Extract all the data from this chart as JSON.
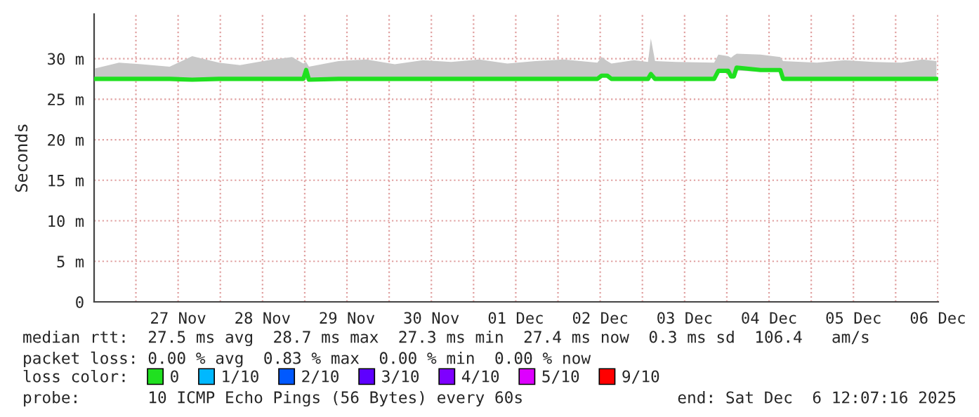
{
  "chart_data": {
    "type": "line",
    "ylabel": "Seconds",
    "x": [
      "2025-11-26T12:24",
      "2025-11-26T19:12",
      "2025-11-27T01:36",
      "2025-11-27T09:36",
      "2025-11-27T16:00",
      "2025-11-27T23:36",
      "2025-11-28T05:36",
      "2025-11-28T13:36",
      "2025-11-28T20:24",
      "2025-11-28T23:36",
      "2025-11-29T00:24",
      "2025-11-29T01:12",
      "2025-11-29T09:36",
      "2025-11-29T17:36",
      "2025-11-30T01:36",
      "2025-11-30T09:36",
      "2025-11-30T17:36",
      "2025-12-01T01:36",
      "2025-12-01T09:36",
      "2025-12-01T17:36",
      "2025-12-02T01:36",
      "2025-12-02T11:12",
      "2025-12-02T12:24",
      "2025-12-02T14:00",
      "2025-12-02T15:12",
      "2025-12-02T21:36",
      "2025-12-03T01:36",
      "2025-12-03T02:24",
      "2025-12-03T03:36",
      "2025-12-03T09:36",
      "2025-12-03T20:24",
      "2025-12-03T21:36",
      "2025-12-04T00:24",
      "2025-12-04T01:12",
      "2025-12-04T02:00",
      "2025-12-04T02:48",
      "2025-12-04T09:36",
      "2025-12-04T15:12",
      "2025-12-04T16:00",
      "2025-12-05T01:36",
      "2025-12-05T09:36",
      "2025-12-05T17:36",
      "2025-12-06T01:36",
      "2025-12-06T07:36",
      "2025-12-06T11:36"
    ],
    "series": [
      {
        "name": "0",
        "color": "#20e020",
        "values": [
          27.5,
          27.5,
          27.5,
          27.5,
          27.4,
          27.5,
          27.5,
          27.5,
          27.5,
          27.5,
          28.6,
          27.4,
          27.5,
          27.5,
          27.5,
          27.5,
          27.5,
          27.5,
          27.5,
          27.5,
          27.5,
          27.5,
          27.9,
          27.9,
          27.5,
          27.5,
          27.5,
          28.1,
          27.5,
          27.5,
          27.5,
          28.5,
          28.5,
          27.8,
          27.8,
          28.9,
          28.6,
          28.6,
          27.5,
          27.5,
          27.5,
          27.5,
          27.5,
          27.5,
          27.5
        ],
        "lower": [
          27.3,
          27.3,
          27.3,
          27.3,
          27.3,
          27.3,
          27.3,
          27.3,
          27.3,
          27.3,
          27.4,
          27.3,
          27.3,
          27.3,
          27.3,
          27.3,
          27.3,
          27.3,
          27.3,
          27.3,
          27.3,
          27.3,
          27.7,
          27.7,
          27.3,
          27.3,
          27.3,
          27.8,
          27.3,
          27.3,
          27.3,
          28.3,
          28.3,
          27.6,
          27.6,
          28.5,
          28.4,
          28.4,
          27.3,
          27.3,
          27.3,
          27.3,
          27.3,
          27.3,
          27.3
        ],
        "upper": [
          28.8,
          29.5,
          29.3,
          29,
          30.3,
          29.5,
          29.2,
          29.8,
          30.2,
          29.4,
          29.6,
          29,
          29.7,
          29.9,
          29.3,
          29.8,
          29.6,
          29.9,
          29.4,
          29.7,
          29.9,
          29.5,
          30.2,
          29.7,
          29.4,
          29.8,
          29.6,
          32.5,
          29.7,
          29.6,
          29.5,
          30.5,
          30.3,
          30.1,
          30.4,
          30.6,
          30.5,
          30.2,
          29.7,
          29.5,
          29.8,
          29.6,
          29.5,
          29.9,
          29.7
        ]
      },
      {
        "name": "1/10",
        "color": "#00b8ff",
        "values": [
          null,
          null,
          null,
          null,
          null,
          null,
          null,
          null,
          null,
          null,
          null,
          null,
          null,
          null,
          null,
          null,
          null,
          null,
          null,
          null,
          null,
          null,
          null,
          null,
          null,
          null,
          null,
          null,
          null,
          null,
          null,
          null,
          null,
          null,
          null,
          null,
          null,
          null,
          null,
          null,
          null,
          null,
          null,
          null,
          null
        ]
      },
      {
        "name": "2/10",
        "color": "#0059ff",
        "values": [
          null,
          null,
          null,
          null,
          null,
          null,
          null,
          null,
          null,
          null,
          null,
          null,
          null,
          null,
          null,
          null,
          null,
          null,
          null,
          null,
          null,
          null,
          null,
          null,
          null,
          null,
          null,
          null,
          null,
          null,
          null,
          null,
          null,
          null,
          null,
          null,
          null,
          null,
          null,
          null,
          null,
          null,
          null,
          null,
          null
        ]
      },
      {
        "name": "3/10",
        "color": "#5e00ff",
        "values": [
          null,
          null,
          null,
          null,
          null,
          null,
          null,
          null,
          null,
          null,
          null,
          null,
          null,
          null,
          null,
          null,
          null,
          null,
          null,
          null,
          null,
          null,
          null,
          null,
          null,
          null,
          null,
          null,
          null,
          null,
          null,
          null,
          null,
          null,
          null,
          null,
          null,
          null,
          null,
          null,
          null,
          null,
          null,
          null,
          null
        ]
      },
      {
        "name": "4/10",
        "color": "#7e00ff",
        "values": [
          null,
          null,
          null,
          null,
          null,
          null,
          null,
          null,
          null,
          null,
          null,
          null,
          null,
          null,
          null,
          null,
          null,
          null,
          null,
          null,
          null,
          null,
          null,
          null,
          null,
          null,
          null,
          null,
          null,
          null,
          null,
          null,
          null,
          null,
          null,
          null,
          null,
          null,
          null,
          null,
          null,
          null,
          null,
          null,
          null
        ]
      },
      {
        "name": "5/10",
        "color": "#dd00ff",
        "values": [
          null,
          null,
          null,
          null,
          null,
          null,
          null,
          null,
          null,
          null,
          null,
          null,
          null,
          null,
          null,
          null,
          null,
          null,
          null,
          null,
          null,
          null,
          null,
          null,
          null,
          null,
          null,
          null,
          null,
          null,
          null,
          null,
          null,
          null,
          null,
          null,
          null,
          null,
          null,
          null,
          null,
          null,
          null,
          null,
          null
        ]
      },
      {
        "name": "9/10",
        "color": "#ff0000",
        "values": [
          null,
          null,
          null,
          null,
          null,
          null,
          null,
          null,
          null,
          null,
          null,
          null,
          null,
          null,
          null,
          null,
          null,
          null,
          null,
          null,
          null,
          null,
          null,
          null,
          null,
          null,
          null,
          null,
          null,
          null,
          null,
          null,
          null,
          null,
          null,
          null,
          null,
          null,
          null,
          null,
          null,
          null,
          null,
          null,
          null
        ]
      }
    ],
    "xlim": [
      "2025-11-26T12:07",
      "2025-12-06T12:07"
    ],
    "xticks": [
      {
        "value": "2025-11-27",
        "label": null
      },
      {
        "value": "2025-11-27T12:00",
        "label": "27 Nov"
      },
      {
        "value": "2025-11-28",
        "label": null
      },
      {
        "value": "2025-11-28T12:00",
        "label": "28 Nov"
      },
      {
        "value": "2025-11-29",
        "label": null
      },
      {
        "value": "2025-11-29T12:00",
        "label": "29 Nov"
      },
      {
        "value": "2025-11-30",
        "label": null
      },
      {
        "value": "2025-11-30T12:00",
        "label": "30 Nov"
      },
      {
        "value": "2025-12-01",
        "label": null
      },
      {
        "value": "2025-12-01T12:00",
        "label": "01 Dec"
      },
      {
        "value": "2025-12-02",
        "label": null
      },
      {
        "value": "2025-12-02T12:00",
        "label": "02 Dec"
      },
      {
        "value": "2025-12-03",
        "label": null
      },
      {
        "value": "2025-12-03T12:00",
        "label": "03 Dec"
      },
      {
        "value": "2025-12-04",
        "label": null
      },
      {
        "value": "2025-12-04T12:00",
        "label": "04 Dec"
      },
      {
        "value": "2025-12-05",
        "label": null
      },
      {
        "value": "2025-12-05T12:00",
        "label": "05 Dec"
      },
      {
        "value": "2025-12-06",
        "label": null
      },
      {
        "value": "2025-12-06T12:00",
        "label": "06 Dec"
      }
    ],
    "ylim": [
      0,
      35.5
    ],
    "yticks": [
      0,
      {
        "value": 5,
        "label": "5 m"
      },
      {
        "value": 10,
        "label": "10 m"
      },
      {
        "value": 15,
        "label": "15 m"
      },
      {
        "value": 20,
        "label": "20 m"
      },
      {
        "value": 25,
        "label": "25 m"
      },
      {
        "value": 30,
        "label": "30 m"
      }
    ],
    "grid": true,
    "legend": "bottom",
    "marker": "none",
    "line_style": "solid",
    "annotations": [
      "median rtt:  27.5 ms avg  28.7 ms max  27.3 ms min  27.4 ms now  0.3 ms sd  106.4   am/s",
      "packet loss: 0.00 % avg  0.83 % max  0.00 % min  0.00 % now",
      "loss color:",
      "probe:       10 ICMP Echo Pings (56 Bytes) every 60s",
      "end: Sat Dec  6 12:07:16 2025"
    ]
  }
}
